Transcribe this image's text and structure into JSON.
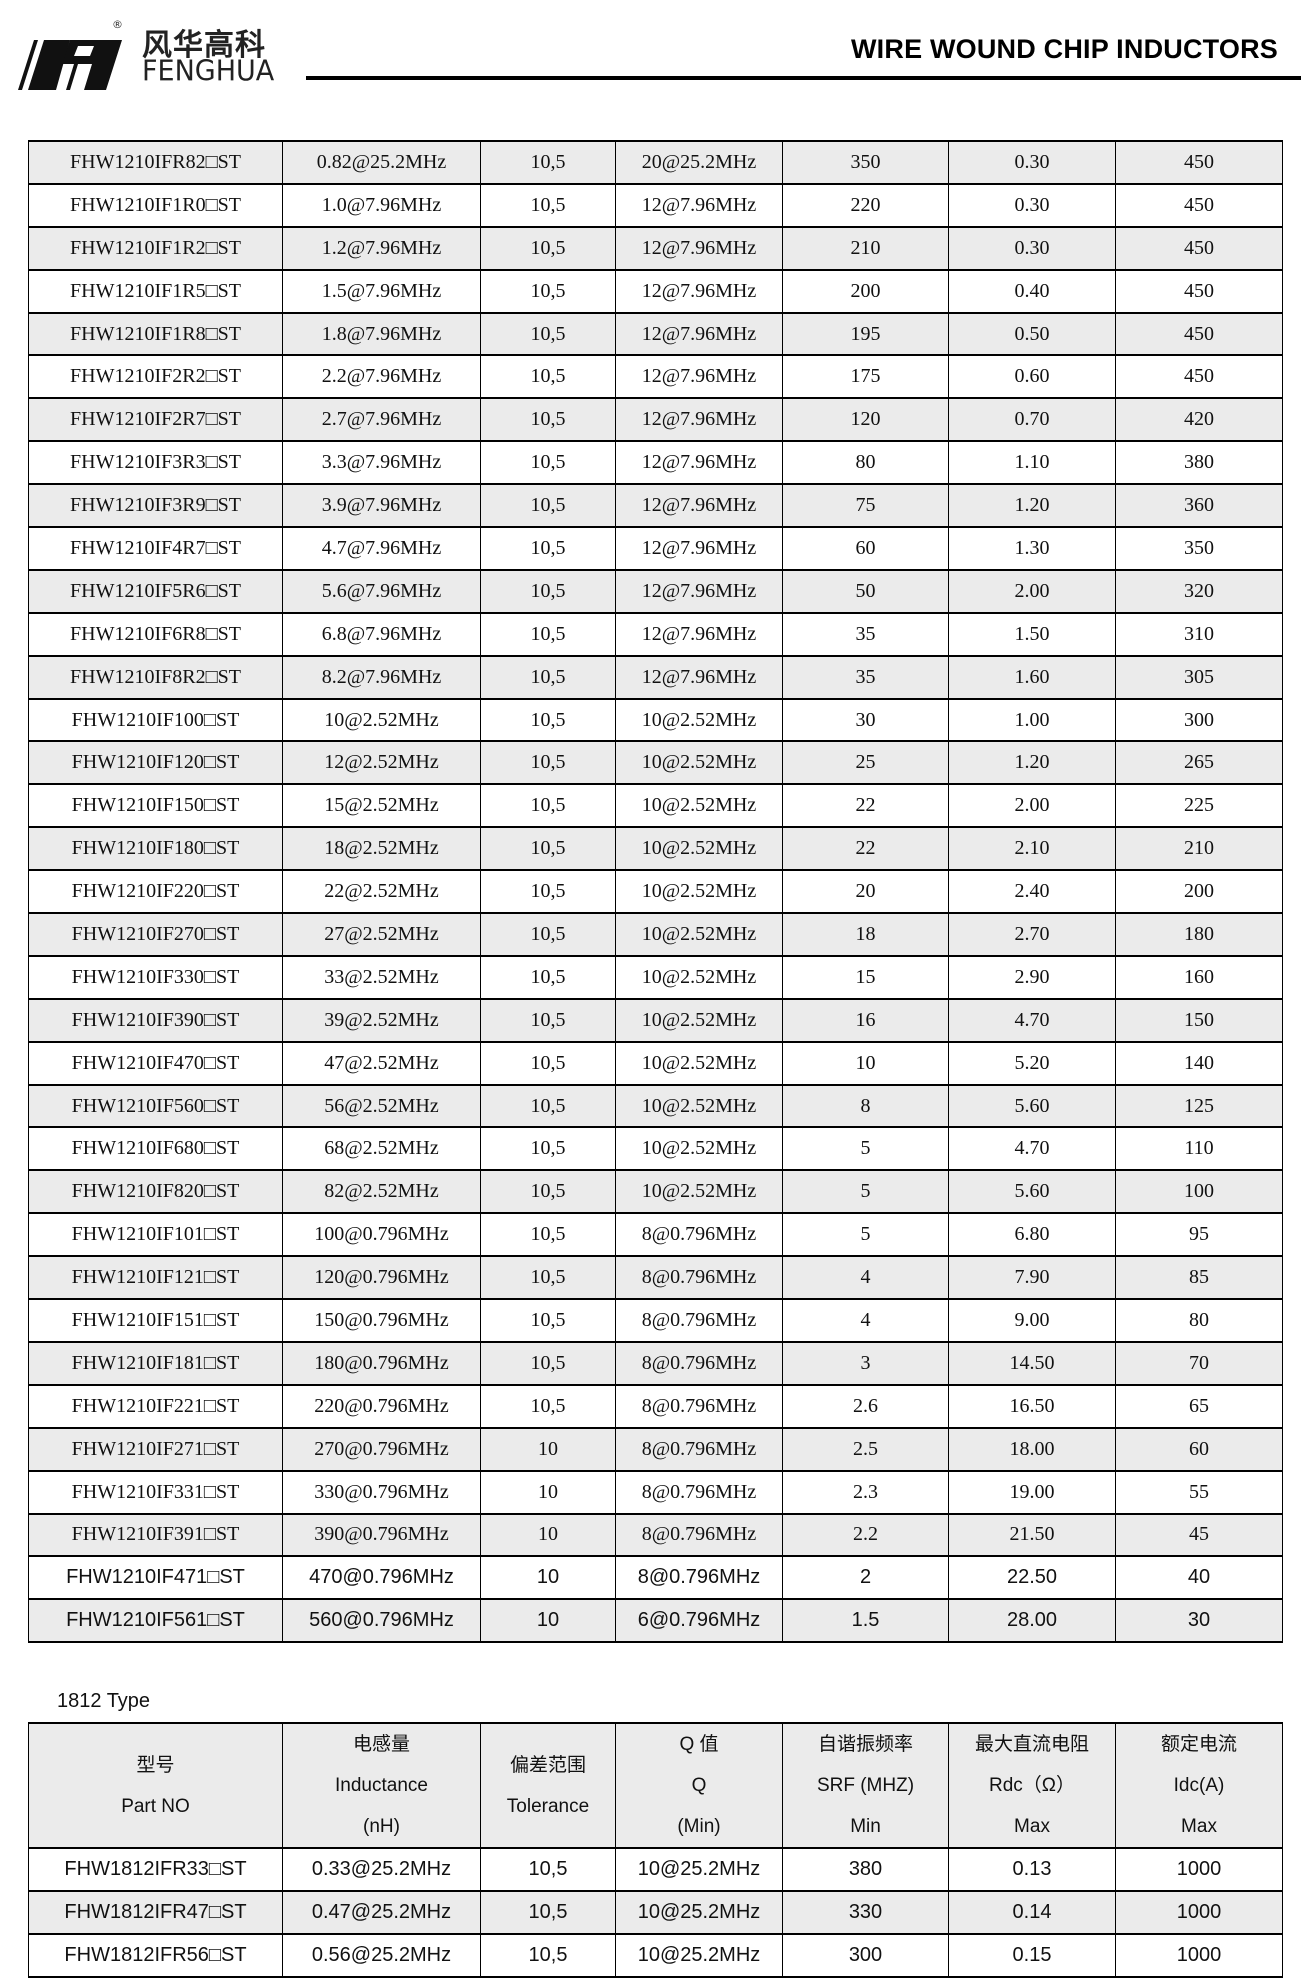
{
  "header": {
    "logo_cn": "风华高科",
    "logo_en": "FENGHUA",
    "registered_mark": "®",
    "title": "WIRE WOUND CHIP INDUCTORS"
  },
  "table_1210": {
    "rows": [
      [
        "FHW1210IFR82□ST",
        "0.82@25.2MHz",
        "10,5",
        "20@25.2MHz",
        "350",
        "0.30",
        "450"
      ],
      [
        "FHW1210IF1R0□ST",
        "1.0@7.96MHz",
        "10,5",
        "12@7.96MHz",
        "220",
        "0.30",
        "450"
      ],
      [
        "FHW1210IF1R2□ST",
        "1.2@7.96MHz",
        "10,5",
        "12@7.96MHz",
        "210",
        "0.30",
        "450"
      ],
      [
        "FHW1210IF1R5□ST",
        "1.5@7.96MHz",
        "10,5",
        "12@7.96MHz",
        "200",
        "0.40",
        "450"
      ],
      [
        "FHW1210IF1R8□ST",
        "1.8@7.96MHz",
        "10,5",
        "12@7.96MHz",
        "195",
        "0.50",
        "450"
      ],
      [
        "FHW1210IF2R2□ST",
        "2.2@7.96MHz",
        "10,5",
        "12@7.96MHz",
        "175",
        "0.60",
        "450"
      ],
      [
        "FHW1210IF2R7□ST",
        "2.7@7.96MHz",
        "10,5",
        "12@7.96MHz",
        "120",
        "0.70",
        "420"
      ],
      [
        "FHW1210IF3R3□ST",
        "3.3@7.96MHz",
        "10,5",
        "12@7.96MHz",
        "80",
        "1.10",
        "380"
      ],
      [
        "FHW1210IF3R9□ST",
        "3.9@7.96MHz",
        "10,5",
        "12@7.96MHz",
        "75",
        "1.20",
        "360"
      ],
      [
        "FHW1210IF4R7□ST",
        "4.7@7.96MHz",
        "10,5",
        "12@7.96MHz",
        "60",
        "1.30",
        "350"
      ],
      [
        "FHW1210IF5R6□ST",
        "5.6@7.96MHz",
        "10,5",
        "12@7.96MHz",
        "50",
        "2.00",
        "320"
      ],
      [
        "FHW1210IF6R8□ST",
        "6.8@7.96MHz",
        "10,5",
        "12@7.96MHz",
        "35",
        "1.50",
        "310"
      ],
      [
        "FHW1210IF8R2□ST",
        "8.2@7.96MHz",
        "10,5",
        "12@7.96MHz",
        "35",
        "1.60",
        "305"
      ],
      [
        "FHW1210IF100□ST",
        "10@2.52MHz",
        "10,5",
        "10@2.52MHz",
        "30",
        "1.00",
        "300"
      ],
      [
        "FHW1210IF120□ST",
        "12@2.52MHz",
        "10,5",
        "10@2.52MHz",
        "25",
        "1.20",
        "265"
      ],
      [
        "FHW1210IF150□ST",
        "15@2.52MHz",
        "10,5",
        "10@2.52MHz",
        "22",
        "2.00",
        "225"
      ],
      [
        "FHW1210IF180□ST",
        "18@2.52MHz",
        "10,5",
        "10@2.52MHz",
        "22",
        "2.10",
        "210"
      ],
      [
        "FHW1210IF220□ST",
        "22@2.52MHz",
        "10,5",
        "10@2.52MHz",
        "20",
        "2.40",
        "200"
      ],
      [
        "FHW1210IF270□ST",
        "27@2.52MHz",
        "10,5",
        "10@2.52MHz",
        "18",
        "2.70",
        "180"
      ],
      [
        "FHW1210IF330□ST",
        "33@2.52MHz",
        "10,5",
        "10@2.52MHz",
        "15",
        "2.90",
        "160"
      ],
      [
        "FHW1210IF390□ST",
        "39@2.52MHz",
        "10,5",
        "10@2.52MHz",
        "16",
        "4.70",
        "150"
      ],
      [
        "FHW1210IF470□ST",
        "47@2.52MHz",
        "10,5",
        "10@2.52MHz",
        "10",
        "5.20",
        "140"
      ],
      [
        "FHW1210IF560□ST",
        "56@2.52MHz",
        "10,5",
        "10@2.52MHz",
        "8",
        "5.60",
        "125"
      ],
      [
        "FHW1210IF680□ST",
        "68@2.52MHz",
        "10,5",
        "10@2.52MHz",
        "5",
        "4.70",
        "110"
      ],
      [
        "FHW1210IF820□ST",
        "82@2.52MHz",
        "10,5",
        "10@2.52MHz",
        "5",
        "5.60",
        "100"
      ],
      [
        "FHW1210IF101□ST",
        "100@0.796MHz",
        "10,5",
        "8@0.796MHz",
        "5",
        "6.80",
        "95"
      ],
      [
        "FHW1210IF121□ST",
        "120@0.796MHz",
        "10,5",
        "8@0.796MHz",
        "4",
        "7.90",
        "85"
      ],
      [
        "FHW1210IF151□ST",
        "150@0.796MHz",
        "10,5",
        "8@0.796MHz",
        "4",
        "9.00",
        "80"
      ],
      [
        "FHW1210IF181□ST",
        "180@0.796MHz",
        "10,5",
        "8@0.796MHz",
        "3",
        "14.50",
        "70"
      ],
      [
        "FHW1210IF221□ST",
        "220@0.796MHz",
        "10,5",
        "8@0.796MHz",
        "2.6",
        "16.50",
        "65"
      ],
      [
        "FHW1210IF271□ST",
        "270@0.796MHz",
        "10",
        "8@0.796MHz",
        "2.5",
        "18.00",
        "60"
      ],
      [
        "FHW1210IF331□ST",
        "330@0.796MHz",
        "10",
        "8@0.796MHz",
        "2.3",
        "19.00",
        "55"
      ],
      [
        "FHW1210IF391□ST",
        "390@0.796MHz",
        "10",
        "8@0.796MHz",
        "2.2",
        "21.50",
        "45"
      ],
      [
        "FHW1210IF471□ST",
        "470@0.796MHz",
        "10",
        "8@0.796MHz",
        "2",
        "22.50",
        "40"
      ],
      [
        "FHW1210IF561□ST",
        "560@0.796MHz",
        "10",
        "6@0.796MHz",
        "1.5",
        "28.00",
        "30"
      ]
    ]
  },
  "table_1812": {
    "label": "1812 Type",
    "headers": [
      [
        "型号",
        "Part NO"
      ],
      [
        "电感量",
        "Inductance",
        "(nH)"
      ],
      [
        "偏差范围",
        "Tolerance"
      ],
      [
        "Q 值",
        "Q",
        "(Min)"
      ],
      [
        "自谐振频率",
        "SRF (MHZ)",
        "Min"
      ],
      [
        "最大直流电阻",
        "Rdc（Ω）",
        "Max"
      ],
      [
        "额定电流",
        "Idc(A)",
        "Max"
      ]
    ],
    "rows": [
      [
        "FHW1812IFR33□ST",
        "0.33@25.2MHz",
        "10,5",
        "10@25.2MHz",
        "380",
        "0.13",
        "1000"
      ],
      [
        "FHW1812IFR47□ST",
        "0.47@25.2MHz",
        "10,5",
        "10@25.2MHz",
        "330",
        "0.14",
        "1000"
      ],
      [
        "FHW1812IFR56□ST",
        "0.56@25.2MHz",
        "10,5",
        "10@25.2MHz",
        "300",
        "0.15",
        "1000"
      ]
    ]
  }
}
